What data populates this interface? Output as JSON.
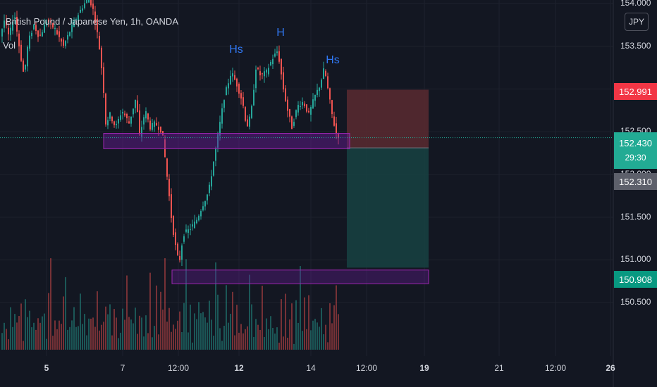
{
  "header": {
    "symbol_title": "British Pound / Japanese Yen, 1h, OANDA",
    "vol_label": "Vol",
    "currency": "JPY"
  },
  "pattern_labels": {
    "left_shoulder": "Hs",
    "head": "H",
    "right_shoulder": "Hs"
  },
  "price_tags": {
    "stop_loss": "152.991",
    "current_price": "152.430",
    "countdown": "29:30",
    "entry": "152.310",
    "take_profit": "150.908"
  },
  "colors": {
    "background": "#131722",
    "up_candle": "#26a69a",
    "down_candle": "#ef5350",
    "zone_border": "#9c27b0",
    "zone_fill": "#6a1b9a",
    "stop_zone": "#5a2a30",
    "profit_zone": "#173f40",
    "pattern_text": "#3179f5",
    "stop_tag": "#f23645",
    "current_tag": "#22ab94",
    "entry_tag": "#5d606b",
    "target_tag": "#089981"
  },
  "chart_data": {
    "type": "candlestick",
    "title": "British Pound / Japanese Yen, 1h, OANDA",
    "y_ticks": [
      "154.000",
      "153.500",
      "153.000",
      "152.500",
      "152.000",
      "151.500",
      "151.000",
      "150.500"
    ],
    "x_ticks": [
      "5",
      "7",
      "12:00",
      "12",
      "14",
      "12:00",
      "19",
      "21",
      "12:00",
      "26"
    ],
    "bold_x_ticks": [
      "5",
      "12",
      "19",
      "26"
    ],
    "price_path": [
      [
        0,
        153.55
      ],
      [
        8,
        153.8
      ],
      [
        15,
        153.6
      ],
      [
        22,
        153.9
      ],
      [
        30,
        153.45
      ],
      [
        36,
        153.15
      ],
      [
        42,
        153.55
      ],
      [
        50,
        153.75
      ],
      [
        58,
        153.6
      ],
      [
        68,
        153.8
      ],
      [
        80,
        153.7
      ],
      [
        92,
        153.5
      ],
      [
        105,
        153.75
      ],
      [
        118,
        153.95
      ],
      [
        128,
        154.08
      ],
      [
        135,
        153.9
      ],
      [
        142,
        153.55
      ],
      [
        148,
        153.1
      ],
      [
        152,
        152.6
      ],
      [
        158,
        152.7
      ],
      [
        166,
        152.55
      ],
      [
        175,
        152.75
      ],
      [
        185,
        152.6
      ],
      [
        195,
        152.9
      ],
      [
        200,
        152.45
      ],
      [
        208,
        152.75
      ],
      [
        215,
        152.55
      ],
      [
        222,
        152.6
      ],
      [
        232,
        152.5
      ],
      [
        240,
        151.9
      ],
      [
        245,
        151.5
      ],
      [
        250,
        151.2
      ],
      [
        256,
        150.95
      ],
      [
        262,
        151.3
      ],
      [
        270,
        151.35
      ],
      [
        280,
        151.45
      ],
      [
        290,
        151.65
      ],
      [
        298,
        151.8
      ],
      [
        305,
        152.15
      ],
      [
        312,
        152.5
      ],
      [
        320,
        152.9
      ],
      [
        330,
        153.2
      ],
      [
        338,
        153.05
      ],
      [
        346,
        152.85
      ],
      [
        352,
        152.55
      ],
      [
        358,
        152.7
      ],
      [
        365,
        153.25
      ],
      [
        372,
        153.15
      ],
      [
        380,
        153.2
      ],
      [
        388,
        153.35
      ],
      [
        396,
        153.45
      ],
      [
        404,
        153.0
      ],
      [
        410,
        152.75
      ],
      [
        416,
        152.55
      ],
      [
        424,
        152.8
      ],
      [
        432,
        152.85
      ],
      [
        440,
        152.7
      ],
      [
        448,
        152.9
      ],
      [
        456,
        153.05
      ],
      [
        462,
        153.25
      ],
      [
        468,
        152.95
      ],
      [
        474,
        152.65
      ],
      [
        480,
        152.45
      ]
    ],
    "volume_samples": [
      30,
      45,
      60,
      25,
      80,
      40,
      110,
      35,
      55,
      90,
      20,
      70,
      50,
      120,
      40,
      65,
      30,
      85,
      45,
      60,
      95,
      35,
      70,
      130,
      40,
      55,
      25,
      75,
      50,
      90,
      110,
      45,
      60,
      35,
      80,
      55,
      40,
      120,
      70,
      50,
      30,
      65,
      95,
      40,
      55,
      75,
      35,
      60,
      45,
      85,
      50,
      70,
      40,
      100,
      60,
      35,
      55,
      80,
      45,
      115,
      40,
      65,
      50,
      75
    ],
    "support_zone": {
      "low": 152.3,
      "high": 152.48
    },
    "target_zone": {
      "low": 150.72,
      "high": 150.88
    },
    "position": {
      "entry": 152.31,
      "stop": 152.991,
      "target": 150.908
    },
    "current_price": 152.43
  }
}
